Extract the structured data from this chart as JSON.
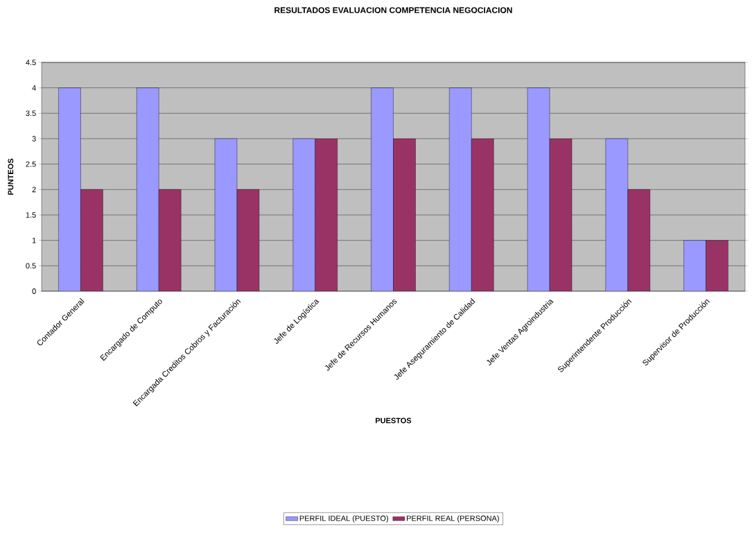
{
  "chart_data": {
    "type": "bar",
    "title": "RESULTADOS EVALUACION  COMPETENCIA NEGOCIACION",
    "xlabel": "PUESTOS",
    "ylabel": "PUNTEOS",
    "categories": [
      "Contador General",
      "Encargado de Computo",
      "Encargada Creditos Cobros y Facturación",
      "Jefe de Logística",
      "Jefe de Recursos Humanos",
      "Jefe Aseguramiento de Calidad",
      "Jefe Ventas Agroindustria",
      "Superintendente Producción",
      "Supervisor de Producción"
    ],
    "series": [
      {
        "name": "PERFIL IDEAL  (PUESTO)",
        "color": "#9999ff",
        "values": [
          4,
          4,
          3,
          3,
          4,
          4,
          4,
          3,
          1
        ]
      },
      {
        "name": "PERFIL REAL  (PERSONA)",
        "color": "#993366",
        "values": [
          2,
          2,
          2,
          3,
          3,
          3,
          3,
          2,
          1
        ]
      }
    ],
    "ylim": [
      0,
      4.5
    ],
    "yticks": [
      0,
      0.5,
      1,
      1.5,
      2,
      2.5,
      3,
      3.5,
      4,
      4.5
    ],
    "grid": "y",
    "legend": "bottom"
  }
}
